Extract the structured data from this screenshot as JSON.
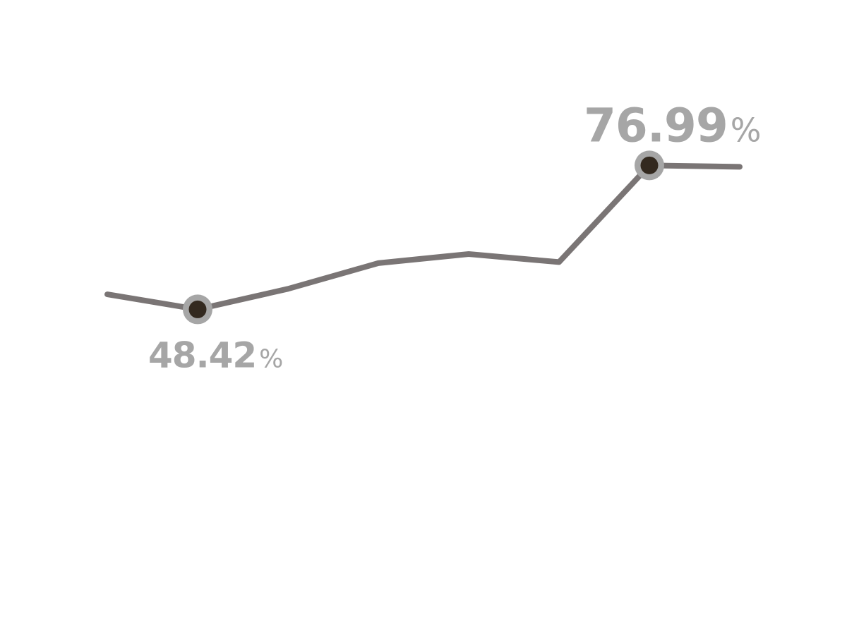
{
  "chart_data": {
    "type": "line",
    "title": "",
    "xlabel": "",
    "ylabel": "",
    "grid": false,
    "legend": "none",
    "ylim": [
      30,
      100
    ],
    "series": [
      {
        "values": [
          51.4,
          48.42,
          52.5,
          57.6,
          59.4,
          57.8,
          76.99,
          76.7
        ],
        "color": "#7a7575"
      }
    ],
    "annotations": [
      {
        "index": 1,
        "value": "48.42",
        "unit": "%",
        "position": "below"
      },
      {
        "index": 6,
        "value": "76.99",
        "unit": "%",
        "position": "above"
      }
    ],
    "marker_ring_color": "#a6a6a6",
    "marker_dot_color": "#33291f",
    "label_color": "#a6a6a6"
  }
}
